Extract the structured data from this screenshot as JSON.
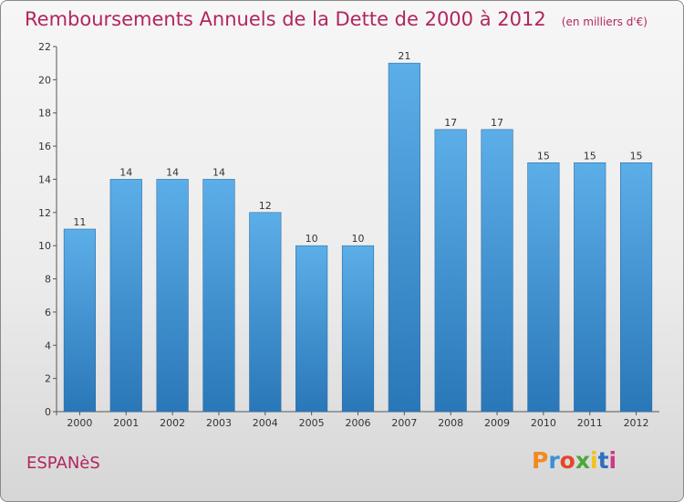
{
  "chart_data": {
    "type": "bar",
    "title": "Remboursements Annuels de la Dette de 2000 à 2012",
    "subtitle": "(en milliers d'€)",
    "xlabel": "",
    "ylabel": "",
    "categories": [
      "2000",
      "2001",
      "2002",
      "2003",
      "2004",
      "2005",
      "2006",
      "2007",
      "2008",
      "2009",
      "2010",
      "2011",
      "2012"
    ],
    "values": [
      11,
      14,
      14,
      14,
      12,
      10,
      10,
      21,
      17,
      17,
      15,
      15,
      15
    ],
    "ylim": [
      0,
      22
    ],
    "yticks": [
      0,
      2,
      4,
      6,
      8,
      10,
      12,
      14,
      16,
      18,
      20,
      22
    ],
    "grid": false,
    "bar_color_top": "#5caee8",
    "bar_color_bottom": "#2a77b8"
  },
  "footer": {
    "commune": "ESPANèS",
    "logo_text": "Proxiti"
  },
  "colors": {
    "title": "#b2255f",
    "logo": [
      "#f28a1e",
      "#3c8fd8",
      "#e6452b",
      "#4aa83a",
      "#f2c21a",
      "#2f6fc0",
      "#cc3a86"
    ]
  }
}
